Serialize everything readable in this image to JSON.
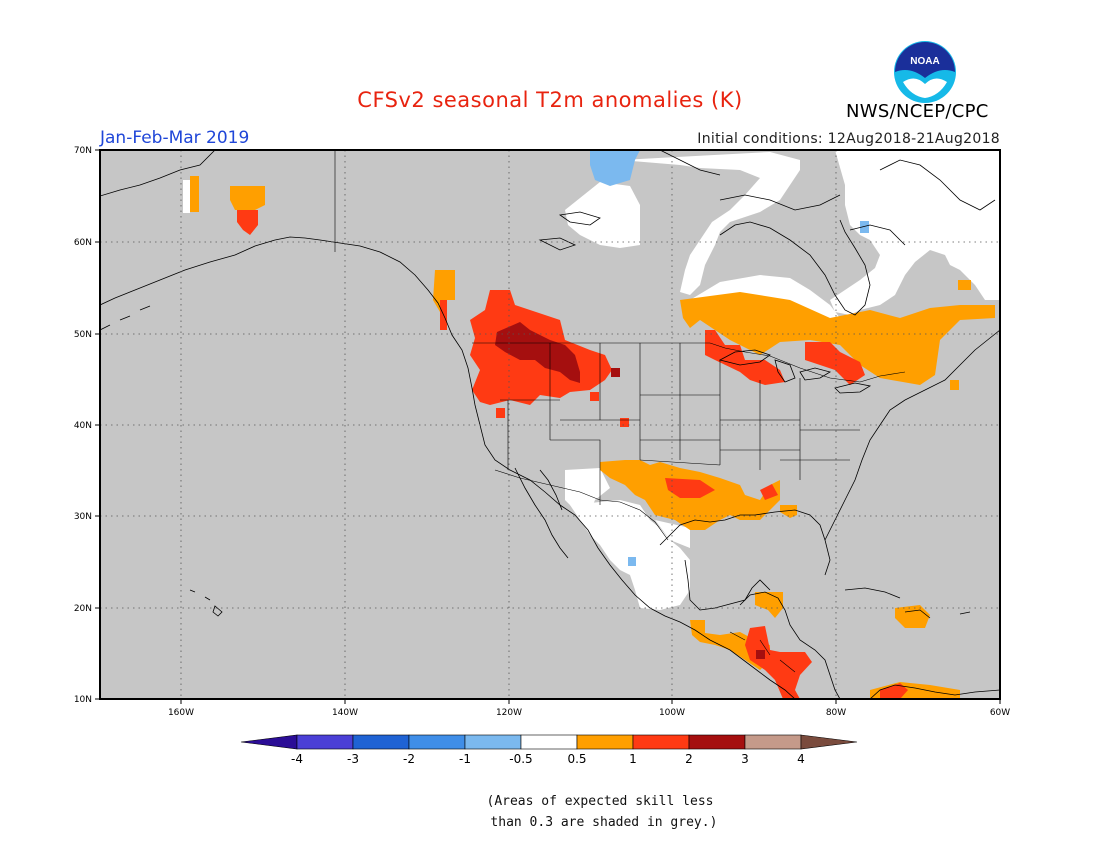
{
  "title": "CFSv2 seasonal T2m anomalies (K)",
  "period": "Jan-Feb-Mar 2019",
  "initial_conditions": "Initial conditions: 12Aug2018-21Aug2018",
  "agency": "NWS/NCEP/CPC",
  "logo_text": "NOAA",
  "lat_labels": [
    "70N",
    "60N",
    "50N",
    "40N",
    "30N",
    "20N",
    "10N"
  ],
  "lon_labels": [
    "160W",
    "140W",
    "120W",
    "100W",
    "80W",
    "60W"
  ],
  "colorbar": {
    "ticks": [
      "-4",
      "-3",
      "-2",
      "-1",
      "-0.5",
      "0.5",
      "1",
      "2",
      "3",
      "4"
    ],
    "colors": [
      "#2b0d96",
      "#4b3fd6",
      "#1f63d4",
      "#3f8ee8",
      "#7bb9ef",
      "#ffffff",
      "#ff9f00",
      "#ff3a13",
      "#a50f0f",
      "#c59a8a",
      "#7a4b3d"
    ]
  },
  "note": "(Areas of expected skill less\n than 0.3 are shaded in grey.)",
  "colors": {
    "title": "#e8230f",
    "period": "#1f46d8",
    "land_grey": "#c6c6c6",
    "white": "#ffffff",
    "blue": "#7bb9ef",
    "orange": "#ff9f00",
    "red": "#ff3a13",
    "darkred": "#a50f0f"
  }
}
